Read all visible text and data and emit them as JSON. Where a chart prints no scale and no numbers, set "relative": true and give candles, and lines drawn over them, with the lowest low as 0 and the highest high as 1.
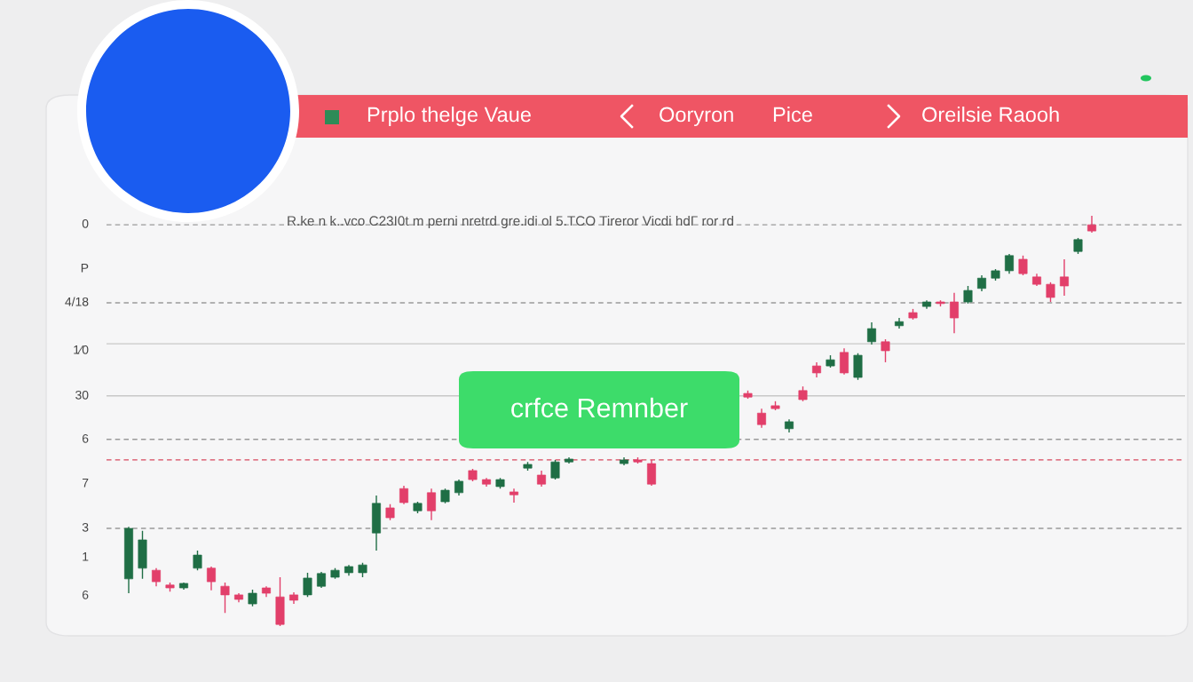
{
  "chart_data": {
    "type": "candlestick",
    "relative": true,
    "title": "Prplo thelge Vaue",
    "subtitle": "R.ke n k..vco C23I0t m perni nretrd gre.idi ol 5.TCO Tireror Vicdi hdΓ ror rd",
    "annotations": [
      "Ooryron",
      "Pice",
      "Oreilsie Raooh",
      "crfce Remnber",
      "0",
      "P",
      "4/18",
      "1⁄0",
      "30",
      "6",
      "7",
      "3",
      "1",
      "6"
    ],
    "categories": [
      null,
      null,
      null,
      null,
      null,
      null,
      null,
      null,
      null,
      null,
      null,
      null,
      null,
      null,
      null,
      null,
      null,
      null,
      null,
      null,
      null,
      null,
      null,
      null,
      null,
      null,
      null,
      null,
      null,
      null,
      null,
      null,
      null,
      null,
      null,
      null,
      null,
      null,
      null,
      null,
      null,
      null,
      null,
      null,
      null,
      null,
      null,
      null,
      null,
      null,
      null,
      null,
      null,
      null,
      null,
      null,
      null,
      null,
      null,
      null,
      null,
      null,
      null,
      null,
      null,
      null,
      null,
      null,
      null,
      null,
      null
    ],
    "ohlc": [
      [
        0.115,
        0.242,
        0.08,
        0.238
      ],
      [
        0.141,
        0.232,
        0.115,
        0.21
      ],
      [
        0.136,
        0.141,
        0.097,
        0.108
      ],
      [
        0.1,
        0.106,
        0.084,
        0.093
      ],
      [
        0.093,
        0.106,
        0.089,
        0.104
      ],
      [
        0.141,
        0.184,
        0.136,
        0.173
      ],
      [
        0.141,
        0.145,
        0.087,
        0.108
      ],
      [
        0.097,
        0.106,
        0.032,
        0.076
      ],
      [
        0.076,
        0.08,
        0.058,
        0.065
      ],
      [
        0.054,
        0.089,
        0.048,
        0.08
      ],
      [
        0.093,
        0.097,
        0.071,
        0.08
      ],
      [
        0.071,
        0.119,
        0.0,
        0.004
      ],
      [
        0.076,
        0.082,
        0.054,
        0.063
      ],
      [
        0.076,
        0.13,
        0.071,
        0.117
      ],
      [
        0.097,
        0.132,
        0.093,
        0.128
      ],
      [
        0.119,
        0.141,
        0.115,
        0.136
      ],
      [
        0.13,
        0.149,
        0.123,
        0.145
      ],
      [
        0.13,
        0.154,
        0.119,
        0.149
      ],
      [
        0.227,
        0.318,
        0.184,
        0.299
      ],
      [
        0.288,
        0.297,
        0.258,
        0.264
      ],
      [
        0.335,
        0.342,
        0.297,
        0.301
      ],
      [
        0.281,
        0.303,
        0.275,
        0.299
      ],
      [
        0.325,
        0.335,
        0.258,
        0.281
      ],
      [
        0.303,
        0.335,
        0.299,
        0.331
      ],
      [
        0.325,
        0.357,
        0.318,
        0.353
      ],
      [
        0.379,
        0.383,
        0.353,
        0.357
      ],
      [
        0.357,
        0.361,
        0.34,
        0.346
      ],
      [
        0.34,
        0.361,
        0.335,
        0.357
      ],
      [
        0.327,
        0.335,
        0.301,
        0.32
      ],
      [
        0.385,
        0.4,
        0.379,
        0.394
      ],
      [
        0.368,
        0.379,
        0.34,
        0.346
      ],
      [
        0.361,
        0.405,
        0.357,
        0.4
      ],
      [
        0.4,
        0.411,
        0.396,
        0.407
      ],
      null,
      null,
      null,
      [
        0.396,
        0.411,
        0.392,
        0.405
      ],
      [
        0.405,
        0.411,
        0.396,
        0.4
      ],
      [
        0.396,
        0.405,
        0.342,
        0.346
      ],
      null,
      null,
      null,
      null,
      null,
      null,
      [
        0.567,
        0.574,
        0.554,
        0.558
      ],
      [
        0.519,
        0.53,
        0.483,
        0.491
      ],
      [
        0.537,
        0.548,
        0.526,
        0.53
      ],
      [
        0.481,
        0.504,
        0.472,
        0.498
      ],
      [
        0.574,
        0.584,
        0.548,
        0.552
      ],
      [
        0.634,
        0.643,
        0.606,
        0.617
      ],
      [
        0.634,
        0.66,
        0.63,
        0.649
      ],
      [
        0.667,
        0.677,
        0.613,
        0.617
      ],
      [
        0.606,
        0.665,
        0.6,
        0.66
      ],
      [
        0.693,
        0.74,
        0.686,
        0.725
      ],
      [
        0.693,
        0.699,
        0.643,
        0.671
      ],
      [
        0.732,
        0.751,
        0.725,
        0.742
      ],
      [
        0.764,
        0.773,
        0.747,
        0.751
      ],
      [
        0.779,
        0.794,
        0.773,
        0.79
      ],
      [
        0.79,
        0.794,
        0.779,
        0.786
      ],
      [
        0.79,
        0.812,
        0.714,
        0.751
      ],
      [
        0.79,
        0.829,
        0.786,
        0.818
      ],
      [
        0.823,
        0.855,
        0.816,
        0.848
      ],
      [
        0.848,
        0.87,
        0.842,
        0.866
      ],
      [
        0.866,
        0.907,
        0.859,
        0.903
      ],
      [
        0.894,
        0.903,
        0.855,
        0.859
      ],
      [
        0.851,
        0.859,
        0.829,
        0.833
      ],
      [
        0.833,
        0.838,
        0.79,
        0.801
      ],
      [
        0.851,
        0.894,
        0.805,
        0.829
      ],
      [
        0.913,
        0.946,
        0.907,
        0.942
      ],
      [
        0.978,
        1.0,
        0.959,
        0.963
      ]
    ],
    "colors": [
      "#1f6e45",
      "#1f6e45",
      "#e23f6a",
      "#e23f6a",
      "#1f6e45",
      "#1f6e45",
      "#e23f6a",
      "#e23f6a",
      "#e23f6a",
      "#1f6e45",
      "#e23f6a",
      "#e23f6a",
      "#e23f6a",
      "#1f6e45",
      "#1f6e45",
      "#1f6e45",
      "#1f6e45",
      "#1f6e45",
      "#1f6e45",
      "#e23f6a",
      "#e23f6a",
      "#1f6e45",
      "#e23f6a",
      "#1f6e45",
      "#1f6e45",
      "#e23f6a",
      "#e23f6a",
      "#1f6e45",
      "#e23f6a",
      "#1f6e45",
      "#e23f6a",
      "#1f6e45",
      "#1f6e45",
      null,
      null,
      null,
      "#1f6e45",
      "#e23f6a",
      "#e23f6a",
      null,
      null,
      null,
      null,
      null,
      null,
      "#e23f6a",
      "#e23f6a",
      "#e23f6a",
      "#1f6e45",
      "#e23f6a",
      "#e23f6a",
      "#1f6e45",
      "#e23f6a",
      "#1f6e45",
      "#1f6e45",
      "#e23f6a",
      "#1f6e45",
      "#e23f6a",
      "#1f6e45",
      "#e23f6a",
      "#e23f6a",
      "#1f6e45",
      "#1f6e45",
      "#1f6e45",
      "#1f6e45",
      "#e23f6a",
      "#e23f6a",
      "#e23f6a",
      "#e23f6a",
      "#1f6e45",
      "#e23f6a"
    ],
    "ref_lines": [
      {
        "axis": "y",
        "value": 0.978,
        "color": "#9a9a9a",
        "line_style": "dashed"
      },
      {
        "axis": "y",
        "value": 0.788,
        "color": "#9a9a9a",
        "line_style": "dashed"
      },
      {
        "axis": "y",
        "value": 0.688,
        "color": "#c8c8c8",
        "line_style": "solid"
      },
      {
        "axis": "y",
        "value": 0.561,
        "color": "#c8c8c8",
        "line_style": "solid"
      },
      {
        "axis": "y",
        "value": 0.455,
        "color": "#9a9a9a",
        "line_style": "dashed"
      },
      {
        "axis": "y",
        "value": 0.405,
        "color": "#d8485f",
        "line_style": "dashed"
      },
      {
        "axis": "y",
        "value": 0.238,
        "color": "#9a9a9a",
        "line_style": "dashed"
      }
    ]
  }
}
